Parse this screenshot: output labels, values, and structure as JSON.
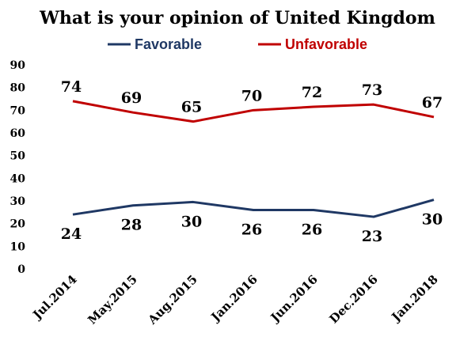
{
  "chart_data": {
    "type": "line",
    "title": "What is your opinion of United Kingdom",
    "categories": [
      "Jul.2014",
      "May.2015",
      "Aug.2015",
      "Jan.2016",
      "Jun.2016",
      "Dec.2016",
      "Jan.2018"
    ],
    "series": [
      {
        "name": "Favorable",
        "color": "#1f3864",
        "values": [
          24,
          28,
          30,
          26,
          26,
          23,
          30
        ],
        "plotted": [
          24,
          28,
          29.5,
          26,
          26,
          23,
          30.5
        ],
        "label_position": "below"
      },
      {
        "name": "Unfavorable",
        "color": "#c00000",
        "values": [
          74,
          69,
          65,
          70,
          72,
          73,
          67
        ],
        "plotted": [
          74,
          69,
          65,
          70,
          71.5,
          72.5,
          67
        ],
        "label_position": "above"
      }
    ],
    "yticks": [
      0,
      10,
      20,
      30,
      40,
      50,
      60,
      70,
      80,
      90
    ],
    "ylim": [
      0,
      90
    ],
    "xlabel": "",
    "ylabel": "",
    "grid": false,
    "legend_position": "top-center"
  }
}
